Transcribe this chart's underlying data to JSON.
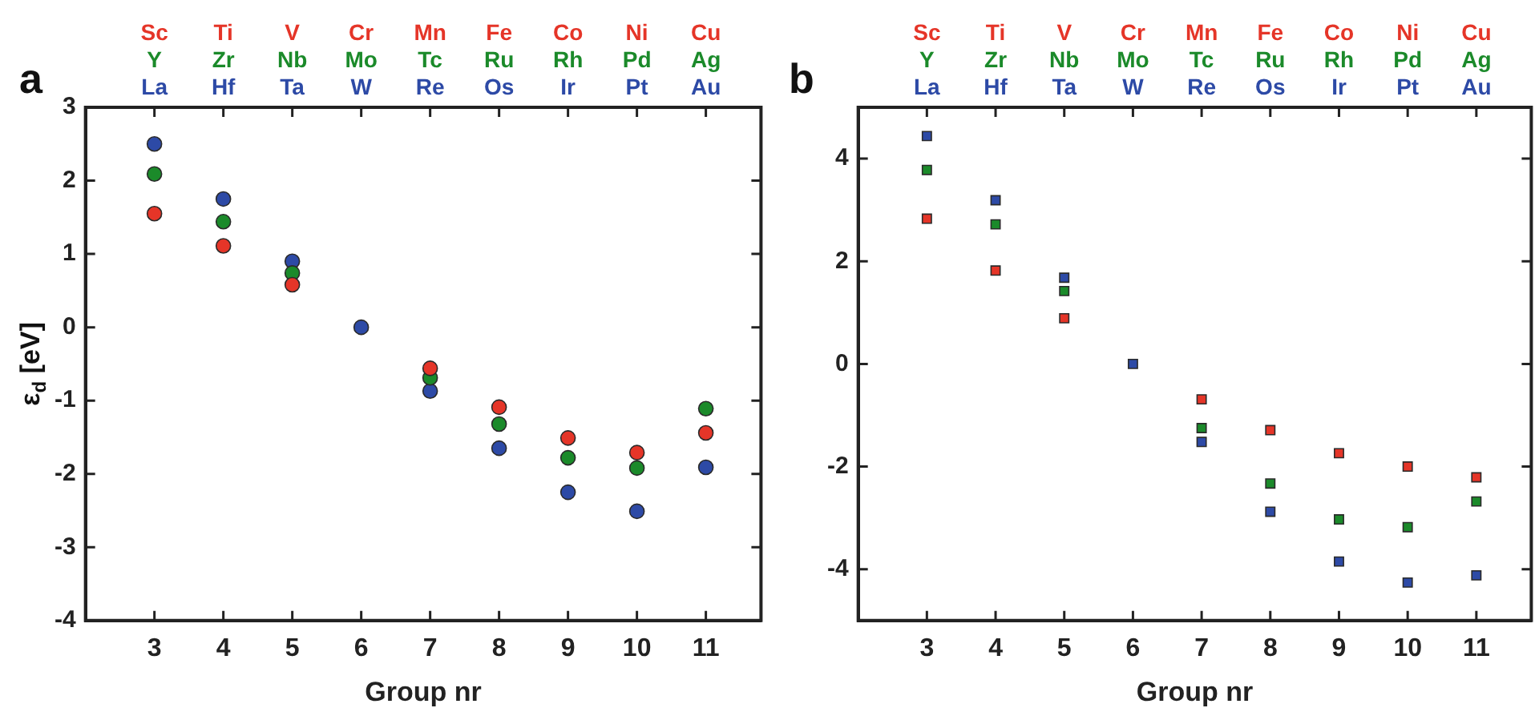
{
  "chart_data": [
    {
      "type": "scatter",
      "title": "a",
      "xlabel": "Group nr",
      "ylabel": "ε$_{d}$ [eV]",
      "marker": "circle",
      "x": [
        3,
        4,
        5,
        6,
        7,
        8,
        9,
        10,
        11
      ],
      "series": [
        {
          "color": "#e53528",
          "values": [
            1.55,
            1.11,
            0.58,
            null,
            -0.56,
            -1.09,
            -1.51,
            -1.71,
            -1.44
          ]
        },
        {
          "color": "#1b8a2a",
          "values": [
            2.09,
            1.44,
            0.74,
            null,
            -0.69,
            -1.32,
            -1.78,
            -1.92,
            -1.11
          ]
        },
        {
          "color": "#2d4aa6",
          "values": [
            2.5,
            1.75,
            0.9,
            0,
            -0.87,
            -1.65,
            -2.25,
            -2.51,
            -1.91
          ]
        }
      ],
      "xlim": [
        2,
        11.8
      ],
      "xticks": [
        3,
        4,
        5,
        6,
        7,
        8,
        9,
        10,
        11
      ],
      "ylim": [
        -4,
        3
      ],
      "yticks": [
        -4,
        -3,
        -2,
        -1,
        0,
        1,
        2,
        3
      ],
      "annotations": [
        "Sc",
        "Ti",
        "V",
        "Cr",
        "Mn",
        "Fe",
        "Co",
        "Ni",
        "Cu",
        "Y",
        "Zr",
        "Nb",
        "Mo",
        "Tc",
        "Ru",
        "Rh",
        "Pd",
        "Ag",
        "La",
        "Hf",
        "Ta",
        "W",
        "Re",
        "Os",
        "Ir",
        "Pt",
        "Au"
      ]
    },
    {
      "type": "scatter",
      "title": "b",
      "xlabel": "Group nr",
      "marker": "square",
      "x": [
        3,
        4,
        5,
        6,
        7,
        8,
        9,
        10,
        11
      ],
      "series": [
        {
          "color": "#e53528",
          "values": [
            2.83,
            1.82,
            0.89,
            null,
            -0.69,
            -1.29,
            -1.74,
            -2.0,
            -2.21
          ]
        },
        {
          "color": "#1b8a2a",
          "values": [
            3.78,
            2.72,
            1.42,
            null,
            -1.25,
            -2.33,
            -3.03,
            -3.18,
            -2.68
          ]
        },
        {
          "color": "#2d4aa6",
          "values": [
            4.44,
            3.19,
            1.68,
            0,
            -1.52,
            -2.88,
            -3.85,
            -4.26,
            -4.12
          ]
        }
      ],
      "xlim": [
        2,
        11.8
      ],
      "xticks": [
        3,
        4,
        5,
        6,
        7,
        8,
        9,
        10,
        11
      ],
      "ylim": [
        -5,
        5
      ],
      "yticks": [
        -4,
        -2,
        0,
        2,
        4
      ],
      "annotations": [
        "Sc",
        "Ti",
        "V",
        "Cr",
        "Mn",
        "Fe",
        "Co",
        "Ni",
        "Cu",
        "Y",
        "Zr",
        "Nb",
        "Mo",
        "Tc",
        "Ru",
        "Rh",
        "Pd",
        "Ag",
        "La",
        "Hf",
        "Ta",
        "W",
        "Re",
        "Os",
        "Ir",
        "Pt",
        "Au"
      ]
    }
  ]
}
